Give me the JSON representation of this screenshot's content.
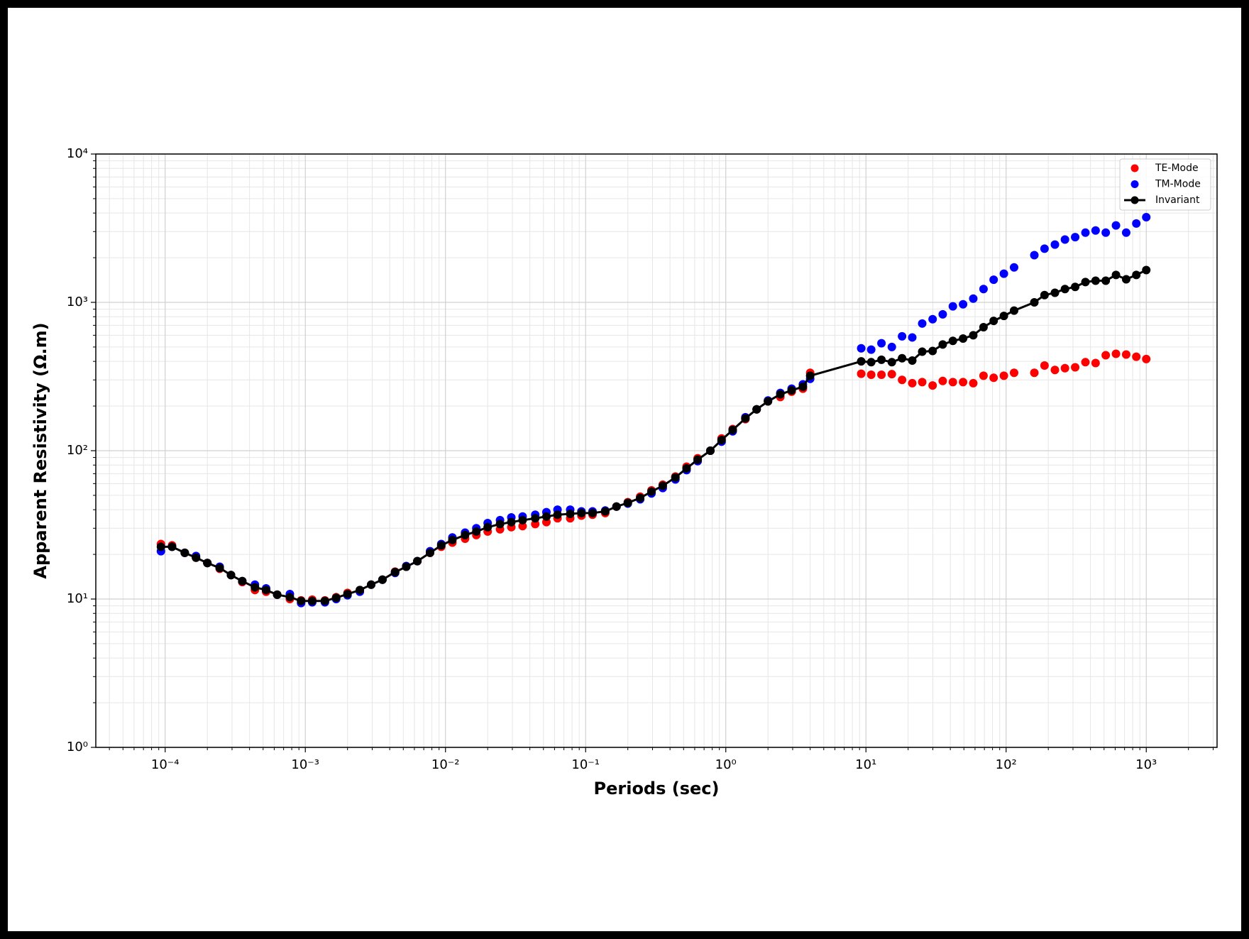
{
  "chart_data": {
    "type": "scatter",
    "xlabel": "Periods (sec)",
    "ylabel": "Apparent Resistivity (Ω.m)",
    "xscale": "log",
    "yscale": "log",
    "grid": true,
    "legend": "upper right",
    "xlim": [
      3.2e-05,
      3200
    ],
    "ylim": [
      1,
      10000
    ],
    "xticks": [
      {
        "value": 0.0001,
        "label": "10⁻⁴"
      },
      {
        "value": 0.001,
        "label": "10⁻³"
      },
      {
        "value": 0.01,
        "label": "10⁻²"
      },
      {
        "value": 0.1,
        "label": "10⁻¹"
      },
      {
        "value": 1,
        "label": "10⁰"
      },
      {
        "value": 10,
        "label": "10¹"
      },
      {
        "value": 100,
        "label": "10²"
      },
      {
        "value": 1000,
        "label": "10³"
      }
    ],
    "yticks": [
      {
        "value": 1,
        "label": "10⁰"
      },
      {
        "value": 10,
        "label": "10¹"
      },
      {
        "value": 100,
        "label": "10²"
      },
      {
        "value": 1000,
        "label": "10³"
      },
      {
        "value": 10000,
        "label": "10⁴"
      }
    ],
    "x": [
      9.33e-05,
      0.000112,
      0.000138,
      0.000166,
      0.0002,
      0.000245,
      0.000295,
      0.000355,
      0.000437,
      0.000525,
      0.00063,
      0.000776,
      0.000933,
      0.00112,
      0.00138,
      0.00166,
      0.002,
      0.00245,
      0.00295,
      0.00355,
      0.00437,
      0.00525,
      0.0063,
      0.00776,
      0.00933,
      0.0112,
      0.0138,
      0.0166,
      0.02,
      0.0245,
      0.0295,
      0.0355,
      0.0437,
      0.0525,
      0.063,
      0.0776,
      0.0933,
      0.112,
      0.138,
      0.166,
      0.2,
      0.245,
      0.295,
      0.355,
      0.437,
      0.525,
      0.63,
      0.776,
      0.933,
      1.12,
      1.38,
      1.66,
      2.0,
      2.45,
      2.95,
      3.55,
      4.0,
      9.25,
      10.9,
      12.9,
      15.3,
      18.1,
      21.4,
      25.2,
      29.9,
      35.3,
      41.7,
      49.3,
      58.3,
      69.0,
      81.5,
      96.4,
      114,
      159,
      188,
      223,
      263,
      311,
      368,
      435,
      514,
      608,
      719,
      849,
      1000
    ],
    "series": [
      {
        "name": "TE-Mode",
        "color": "#ff0000",
        "mode": "markers",
        "values": [
          23.5,
          23,
          20.5,
          19,
          17.5,
          16,
          14.5,
          13,
          11.5,
          11.2,
          10.7,
          10,
          9.8,
          9.9,
          9.8,
          10.3,
          11,
          11.5,
          12.5,
          13.5,
          15.3,
          16.5,
          18,
          20.5,
          22.5,
          24,
          25.5,
          27,
          28.5,
          29.5,
          30.5,
          31,
          32,
          33,
          35,
          35,
          36.5,
          37,
          38,
          42,
          45,
          49,
          54,
          59,
          67,
          78,
          89,
          100,
          121,
          140,
          163,
          190,
          215,
          230,
          250,
          262,
          335,
          330,
          325,
          325,
          328,
          300,
          285,
          290,
          275,
          295,
          290,
          290,
          285,
          320,
          310,
          320,
          335,
          335,
          375,
          350,
          360,
          365,
          395,
          390,
          440,
          450,
          445,
          430,
          415
        ]
      },
      {
        "name": "TM-Mode",
        "color": "#0000ff",
        "mode": "markers",
        "values": [
          21,
          22.5,
          20.5,
          19.5,
          17.5,
          16.5,
          14.5,
          13.2,
          12.5,
          11.8,
          10.7,
          10.8,
          9.4,
          9.5,
          9.5,
          10,
          10.6,
          11.2,
          12.5,
          13.5,
          15,
          16.7,
          18,
          21,
          23.5,
          26,
          28,
          30,
          32.5,
          34,
          35.5,
          36,
          37,
          38.5,
          40,
          40,
          39,
          39,
          39.5,
          42,
          44,
          47,
          51.5,
          56,
          64,
          74,
          85,
          100,
          115,
          135,
          168,
          190,
          218,
          245,
          262,
          280,
          305,
          490,
          480,
          530,
          500,
          590,
          580,
          720,
          770,
          830,
          940,
          970,
          1060,
          1230,
          1420,
          1560,
          1720,
          2080,
          2300,
          2450,
          2650,
          2750,
          2950,
          3050,
          2950,
          3300,
          2950,
          3400,
          3750
        ]
      },
      {
        "name": "Invariant",
        "color": "#000000",
        "mode": "lines+markers",
        "values": [
          22.5,
          22.5,
          20.5,
          19,
          17.5,
          16.2,
          14.5,
          13.2,
          12,
          11.5,
          10.7,
          10.3,
          9.7,
          9.7,
          9.7,
          10.2,
          10.8,
          11.5,
          12.5,
          13.5,
          15.2,
          16.5,
          18,
          20.5,
          23,
          25,
          27,
          28.5,
          30.5,
          32,
          33,
          34,
          35,
          36,
          37,
          37.5,
          38,
          38,
          39,
          42,
          44.5,
          48,
          53,
          58,
          66,
          76,
          87,
          100,
          118,
          138,
          165,
          190,
          215,
          240,
          255,
          270,
          320,
          400,
          395,
          410,
          395,
          420,
          405,
          465,
          470,
          520,
          550,
          570,
          600,
          680,
          750,
          810,
          880,
          1000,
          1120,
          1160,
          1230,
          1270,
          1370,
          1400,
          1400,
          1530,
          1430,
          1530,
          1650
        ]
      }
    ]
  }
}
